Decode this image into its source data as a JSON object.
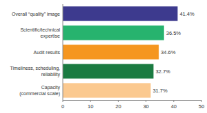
{
  "chart_data": {
    "type": "bar",
    "orientation": "horizontal",
    "categories": [
      "Overall “quality” image",
      "Scientific/technical\nexpertise",
      "Audit results",
      "Timeliness, scheduling,\nreliability",
      "Capacity\n(commercial scale)"
    ],
    "values": [
      41.4,
      36.5,
      34.6,
      32.7,
      31.7
    ],
    "value_labels": [
      "41.4%",
      "36.5%",
      "34.6%",
      "32.7%",
      "31.7%"
    ],
    "colors": [
      "#3d3a8e",
      "#27b36e",
      "#f5961f",
      "#1b7b41",
      "#fbc98f"
    ],
    "xlim": [
      0,
      50
    ],
    "xticks": [
      0,
      10,
      20,
      30,
      40,
      50
    ],
    "data_labels": true,
    "grid": false
  }
}
